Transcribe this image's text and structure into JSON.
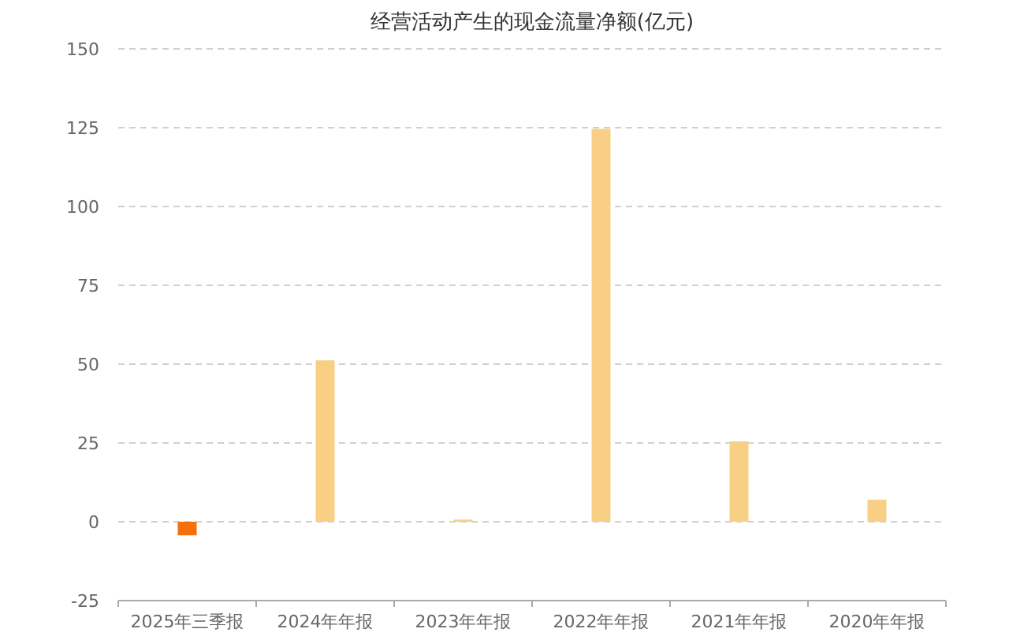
{
  "chart_data": {
    "type": "bar",
    "title": "经营活动产生的现金流量净额(亿元)",
    "categories": [
      "2025年三季报",
      "2024年年报",
      "2023年年报",
      "2022年年报",
      "2021年年报",
      "2020年年报"
    ],
    "values": [
      -4.3,
      51.2,
      0.7,
      124.6,
      25.5,
      7
    ],
    "colors": [
      "#f5700a",
      "#f9cf85",
      "#f9cf85",
      "#f9cf85",
      "#f9cf85",
      "#f9cf85"
    ],
    "ylim": [
      -25,
      150
    ],
    "yticks": [
      -25,
      0,
      25,
      50,
      75,
      100,
      125,
      150
    ],
    "grid": "y"
  }
}
